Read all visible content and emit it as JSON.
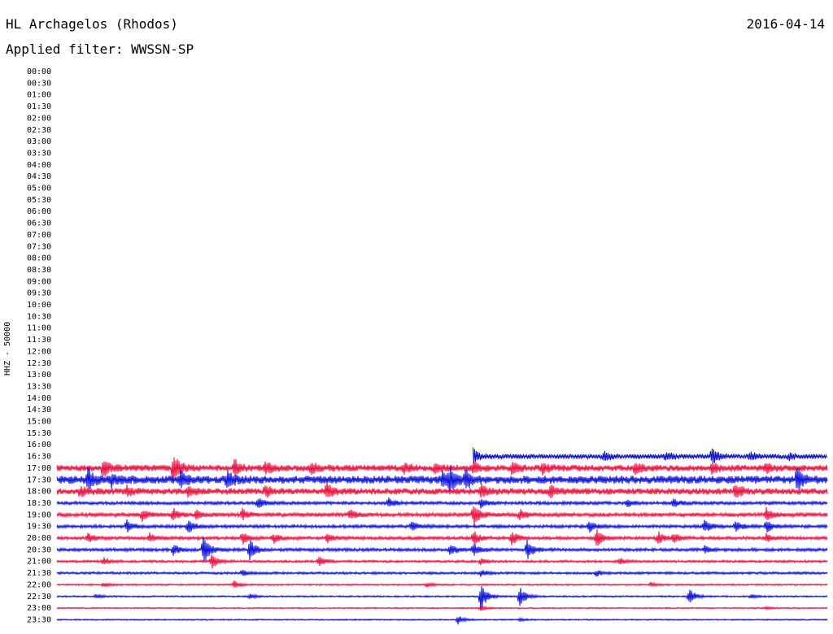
{
  "header": {
    "station": "HL Archagelos (Rhodos)",
    "date": "2016-04-14",
    "filter": "Applied filter: WWSSN-SP"
  },
  "chart_data": {
    "type": "line",
    "title": "HL Archagelos (Rhodos)",
    "ylabel": "HHZ - 50000",
    "row_labels": [
      "00:00",
      "00:30",
      "01:00",
      "01:30",
      "02:00",
      "02:30",
      "03:00",
      "03:30",
      "04:00",
      "04:30",
      "05:00",
      "05:30",
      "06:00",
      "06:30",
      "07:00",
      "07:30",
      "08:00",
      "08:30",
      "09:00",
      "09:30",
      "10:00",
      "10:30",
      "11:00",
      "11:30",
      "12:00",
      "12:30",
      "13:00",
      "13:30",
      "14:00",
      "14:30",
      "15:00",
      "15:30",
      "16:00",
      "16:30",
      "17:00",
      "17:30",
      "18:00",
      "18:30",
      "19:00",
      "19:30",
      "20:00",
      "20:30",
      "21:00",
      "21:30",
      "22:00",
      "22:30",
      "23:00",
      "23:30"
    ],
    "colors": [
      "#e8103e",
      "#0a10d8"
    ],
    "trace_start": "16:30",
    "first_trace_start_fraction": 0.54,
    "noise_level": [
      0,
      0,
      0,
      0,
      0,
      0,
      0,
      0,
      0,
      0,
      0,
      0,
      0,
      0,
      0,
      0,
      0,
      0,
      0,
      0,
      0,
      0,
      0,
      0,
      0,
      0,
      0,
      0,
      0,
      0,
      0,
      0,
      0,
      3,
      4,
      5,
      4,
      2,
      2.5,
      2,
      2,
      2,
      1.5,
      1.5,
      1,
      1,
      0.8,
      0.8
    ],
    "events": {
      "16:30": [
        [
          0.54,
          10
        ],
        [
          0.71,
          6
        ],
        [
          0.79,
          5
        ],
        [
          0.85,
          12
        ],
        [
          0.9,
          5
        ],
        [
          0.95,
          4
        ]
      ],
      "17:00": [
        [
          0.06,
          12
        ],
        [
          0.15,
          22
        ],
        [
          0.23,
          10
        ],
        [
          0.27,
          9
        ],
        [
          0.33,
          9
        ],
        [
          0.45,
          8
        ],
        [
          0.49,
          6
        ],
        [
          0.54,
          7
        ],
        [
          0.59,
          8
        ],
        [
          0.63,
          7
        ],
        [
          0.75,
          8
        ],
        [
          0.85,
          7
        ],
        [
          0.92,
          6
        ]
      ],
      "17:30": [
        [
          0.04,
          14
        ],
        [
          0.07,
          8
        ],
        [
          0.16,
          10
        ],
        [
          0.22,
          12
        ],
        [
          0.5,
          10
        ],
        [
          0.51,
          16
        ],
        [
          0.53,
          10
        ],
        [
          0.96,
          14
        ]
      ],
      "18:00": [
        [
          0.03,
          7
        ],
        [
          0.09,
          6
        ],
        [
          0.17,
          6
        ],
        [
          0.27,
          7
        ],
        [
          0.35,
          10
        ],
        [
          0.55,
          8
        ],
        [
          0.64,
          9
        ],
        [
          0.88,
          10
        ]
      ],
      "18:30": [
        [
          0.26,
          8
        ],
        [
          0.43,
          7
        ],
        [
          0.55,
          6
        ],
        [
          0.74,
          5
        ],
        [
          0.8,
          6
        ]
      ],
      "19:00": [
        [
          0.11,
          8
        ],
        [
          0.15,
          9
        ],
        [
          0.18,
          6
        ],
        [
          0.24,
          7
        ],
        [
          0.38,
          7
        ],
        [
          0.54,
          16
        ],
        [
          0.6,
          7
        ],
        [
          0.92,
          9
        ]
      ],
      "19:30": [
        [
          0.09,
          9
        ],
        [
          0.17,
          8
        ],
        [
          0.46,
          6
        ],
        [
          0.69,
          8
        ],
        [
          0.84,
          10
        ],
        [
          0.88,
          8
        ],
        [
          0.92,
          9
        ]
      ],
      "20:00": [
        [
          0.04,
          6
        ],
        [
          0.12,
          6
        ],
        [
          0.24,
          8
        ],
        [
          0.28,
          7
        ],
        [
          0.35,
          6
        ],
        [
          0.54,
          10
        ],
        [
          0.59,
          9
        ],
        [
          0.7,
          12
        ],
        [
          0.78,
          8
        ],
        [
          0.8,
          7
        ],
        [
          0.92,
          5
        ]
      ],
      "20:30": [
        [
          0.15,
          8
        ],
        [
          0.19,
          18
        ],
        [
          0.25,
          14
        ],
        [
          0.51,
          7
        ],
        [
          0.54,
          8
        ],
        [
          0.61,
          12
        ],
        [
          0.84,
          5
        ]
      ],
      "21:00": [
        [
          0.06,
          5
        ],
        [
          0.2,
          10
        ],
        [
          0.34,
          6
        ],
        [
          0.55,
          4
        ],
        [
          0.73,
          4
        ]
      ],
      "21:30": [
        [
          0.24,
          4
        ],
        [
          0.55,
          4
        ],
        [
          0.7,
          4
        ]
      ],
      "22:00": [
        [
          0.06,
          3
        ],
        [
          0.23,
          5
        ],
        [
          0.48,
          3
        ],
        [
          0.77,
          3
        ]
      ],
      "22:30": [
        [
          0.05,
          3
        ],
        [
          0.25,
          3
        ],
        [
          0.55,
          18
        ],
        [
          0.6,
          14
        ],
        [
          0.82,
          11
        ],
        [
          0.9,
          3
        ]
      ],
      "23:00": [
        [
          0.55,
          3
        ],
        [
          0.92,
          2
        ]
      ],
      "23:30": [
        [
          0.52,
          6
        ],
        [
          0.6,
          2
        ]
      ]
    }
  }
}
